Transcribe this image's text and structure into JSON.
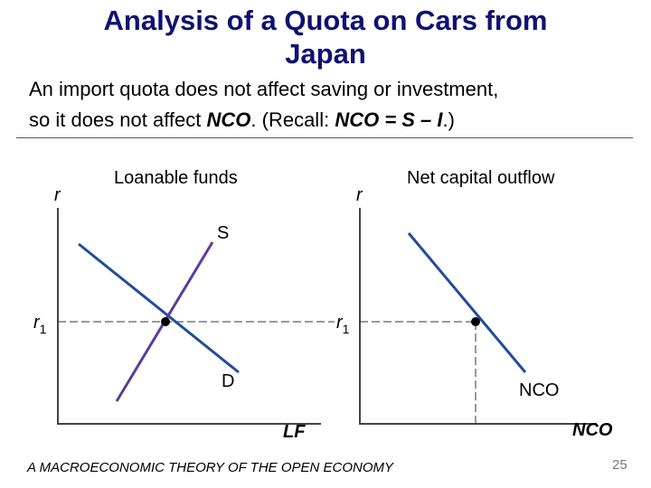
{
  "slide": {
    "title_line1": "Analysis of a Quota on Cars from",
    "title_line2": "Japan",
    "subtitle_line1": "An import quota does not affect saving or investment,",
    "subtitle_line2_pre": "so it does not affect ",
    "subtitle_nco": "NCO",
    "subtitle_mid": ".  (Recall:  ",
    "subtitle_eq": "NCO = S – I",
    "subtitle_end": ".)",
    "footer": "A MACROECONOMIC THEORY OF THE OPEN ECONOMY",
    "page_number": "25"
  },
  "left_panel": {
    "title": "Loanable funds",
    "y_axis_label": "r",
    "x_axis_label": "LF",
    "rate_label": "r",
    "rate_sub": "1",
    "supply_label": "S",
    "demand_label": "D"
  },
  "right_panel": {
    "title": "Net capital outflow",
    "y_axis_label": "r",
    "x_axis_label": "NCO",
    "rate_label": "r",
    "rate_sub": "1",
    "curve_label": "NCO"
  },
  "colors": {
    "title": "#0f1070",
    "supply_curve": "#5a3d9a",
    "demand_curve": "#1f4e9c",
    "nco_curve": "#1f4e9c"
  }
}
